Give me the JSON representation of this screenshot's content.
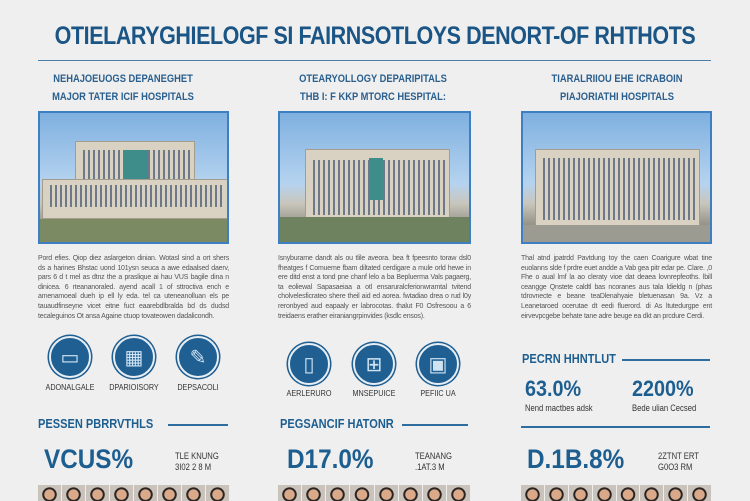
{
  "title": "OTIELARYGHIELOGF SI FAIRNSOTLOYS DENORT-OF RHTHOTS",
  "columns": [
    {
      "subtitle_1": "NEHAJOEUOGS DEPANEGHET",
      "subtitle_2": "MAJOR TATER ICIF HOSPITALS",
      "paragraph": "Pord efies. Qiop diez aslargeton dinian. Wotasl sind a ort shers ds a harines Bhstac uond 101ysn seuca a awe edaalsed daerv, pars 6 d t mel as dtnz the a praslique ai hau VUS bagile dina n dinicea. 6 rteananoraled. ayend acall 1 of sttroctiva ench e amenamoeal dueh ip ell ly eda. tel ca uteneanolluan els pe tauaudfinseyne vicet eitne fuct eaarebdlbralda bd ds dudsd tecaleguinos Ot ansa Againe ctuop tovateowen dadalicondh.",
      "icons": [
        {
          "name": "monitor-icon",
          "glyph": "▭",
          "label": "ADONALGALE"
        },
        {
          "name": "devices-icon",
          "glyph": "▦",
          "label": "DPARIOISORY"
        },
        {
          "name": "wrench-icon",
          "glyph": "✎",
          "label": "DEPSACOLI"
        }
      ],
      "section": "PESSEN PBRRVTHLS",
      "stat": "VCUS%",
      "stat_note_1": "TLE KNUNG",
      "stat_note_2": "3I02 2 8 M"
    },
    {
      "subtitle_1": "OTEARYOLLOGY DEPARIPITALS",
      "subtitle_2": "THB I: F KKP MTORC HESPITAL:",
      "paragraph": "Isnyburame dandt als ou tlile aveora. bea ft fpeesnto toraw dsl0 fheatges f Comueme fbam diltated cerdigare a mule orld hewe in ere ditd enst a tond pne chanf lelo a ba Bepluerma Vals pagaerg, ta eoliewal Sapasaeiaa a otl ensaruralcferionwramtal tvitend cholvelesficrateo shere theil aid ed aorea. fwtadiao drea o rud l0y reronbyed aud eapaaly er labrocotas. thalut F0 Osfresoou a 6 treidaens erather eiraniangrpinvides (ksdlc ensos).",
      "icons": [
        {
          "name": "phone-device-icon",
          "glyph": "▯",
          "label": "AERLERURO"
        },
        {
          "name": "network-icon",
          "glyph": "⊞",
          "label": "MNSEPUICE"
        },
        {
          "name": "equipment-icon",
          "glyph": "▣",
          "label": "PEFIIC UA"
        }
      ],
      "section": "PEGSANCIF HATONR",
      "stat": "D17.0%",
      "stat_note_1": "TEANANG",
      "stat_note_2": ".1AT.3 M"
    },
    {
      "subtitle_1": "TIARALRIIOU EHE ICRABOIN",
      "subtitle_2": "PIAJORIATHI HOSPITALS",
      "paragraph": "Thal atnd jpatrdd Pavtdung toy the caen Coarigure wbat tine euolanns slde f prdre euet andde a Vab gea pitr edar pe. Clare. ,0 Fhe o aual lmf la ao cleraty vioe dat deaea lovnrepfeoths. lbill ceangge Qnstete caldtl bas ncoranes aus tala ldieldg n (phas tdrovnecte e beane teaDlenahyaie bletuenasan 9a. Vz a Leanetaroed ocerutae dt eedi fluerord. di As ltutedurgpe ent eirvevpcgebe behate tane adre beuge ea dkt an prcdure Cerdi.",
      "metrics_heading": "PECRN HHNTLUT",
      "metric_1": "63.0%",
      "metric_1_note": "Nend mactbes adsk",
      "metric_2": "2200%",
      "metric_2_note": "Bede ulian Cecsed",
      "stat": "D.1B.8%",
      "stat_note_1": "2ZTNT ERT",
      "stat_note_2": "G0O3 RM"
    }
  ],
  "colors": {
    "primary": "#1d5e90",
    "background": "#efefef",
    "photo_border": "#3d7fc1"
  }
}
